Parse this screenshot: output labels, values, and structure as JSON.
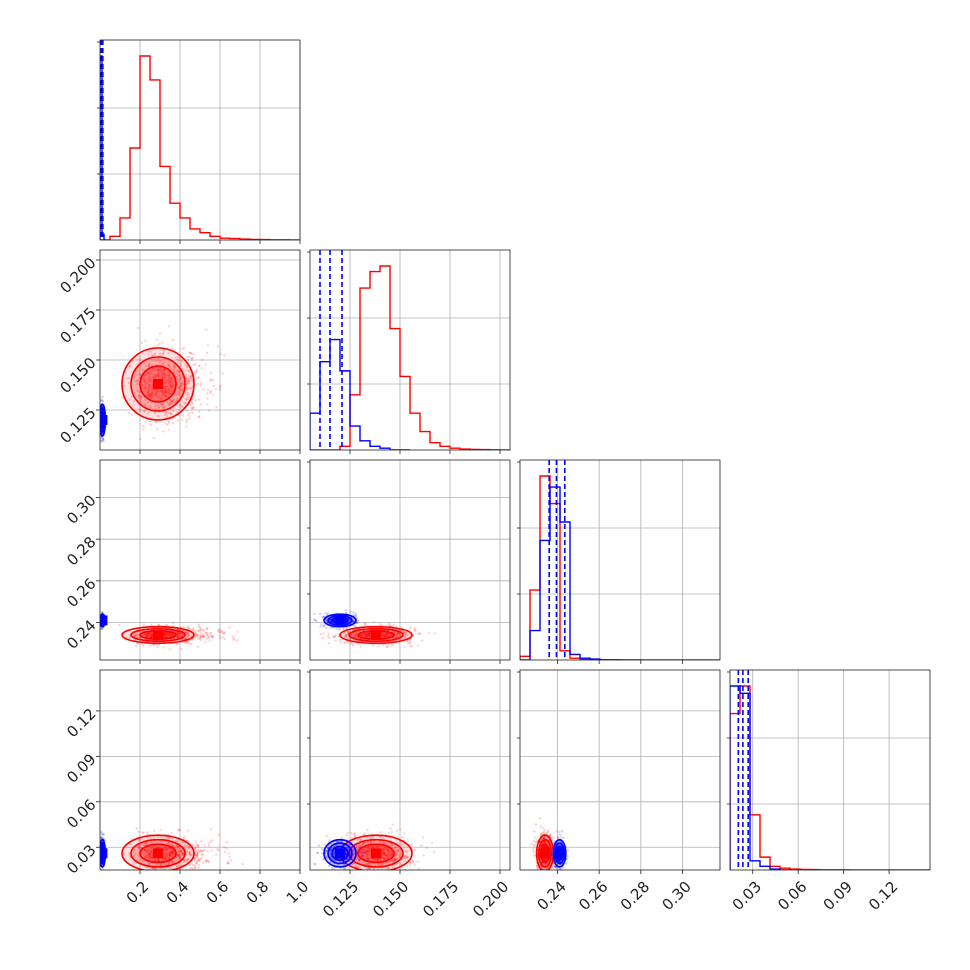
{
  "chart_data": {
    "type": "corner",
    "title": "",
    "grid": true,
    "params": [
      {
        "range": [
          0.0,
          1.0
        ],
        "ticks": [
          0.2,
          0.4,
          0.6,
          0.8,
          1.0
        ],
        "tick_labels": [
          "0.2",
          "0.4",
          "0.6",
          "0.8",
          "1.0"
        ]
      },
      {
        "range": [
          0.105,
          0.205
        ],
        "ticks": [
          0.125,
          0.15,
          0.175,
          0.2
        ],
        "tick_labels": [
          "0.125",
          "0.150",
          "0.175",
          "0.200"
        ]
      },
      {
        "range": [
          0.222,
          0.318
        ],
        "ticks": [
          0.24,
          0.26,
          0.28,
          0.3
        ],
        "tick_labels": [
          "0.24",
          "0.26",
          "0.28",
          "0.30"
        ]
      },
      {
        "range": [
          0.015,
          0.147
        ],
        "ticks": [
          0.03,
          0.06,
          0.09,
          0.12
        ],
        "tick_labels": [
          "0.03",
          "0.06",
          "0.09",
          "0.12"
        ]
      }
    ],
    "series": [
      {
        "color": "#ff0000",
        "centers": [
          0.29,
          0.138,
          0.234,
          0.026
        ],
        "spreads": [
          0.09,
          0.009,
          0.002,
          0.006
        ],
        "histograms": [
          {
            "edges": [
              0.0,
              0.05,
              0.1,
              0.15,
              0.2,
              0.25,
              0.3,
              0.35,
              0.4,
              0.45,
              0.5,
              0.55,
              0.6,
              0.65,
              0.7,
              0.75,
              0.8,
              0.85,
              0.9,
              0.95,
              1.0
            ],
            "counts": [
              0,
              0.02,
              0.12,
              0.5,
              1.0,
              0.87,
              0.4,
              0.2,
              0.12,
              0.06,
              0.04,
              0.02,
              0.01,
              0.008,
              0.005,
              0.003,
              0.002,
              0.001,
              0.001,
              0.0
            ]
          },
          {
            "edges": [
              0.105,
              0.11,
              0.115,
              0.12,
              0.125,
              0.13,
              0.135,
              0.14,
              0.145,
              0.15,
              0.155,
              0.16,
              0.165,
              0.17,
              0.175,
              0.18,
              0.185,
              0.19,
              0.195,
              0.2,
              0.205
            ],
            "counts": [
              0,
              0,
              0,
              0.02,
              0.3,
              0.88,
              0.97,
              1.0,
              0.66,
              0.4,
              0.2,
              0.1,
              0.04,
              0.02,
              0.01,
              0.005,
              0.003,
              0.002,
              0.001,
              0.0
            ]
          },
          {
            "edges": [
              0.222,
              0.2268,
              0.2316,
              0.2364,
              0.2412,
              0.246,
              0.2508,
              0.2556,
              0.2604,
              0.2652,
              0.27,
              0.2748,
              0.2796,
              0.2844,
              0.2892,
              0.294,
              0.2988,
              0.3036,
              0.3084,
              0.3132,
              0.318
            ],
            "counts": [
              0.02,
              0.38,
              1.0,
              0.85,
              0.05,
              0.01,
              0.003,
              0.002,
              0.001,
              0.001,
              0.001,
              0.001,
              0.0005,
              0.0005,
              0.0005,
              0.0005,
              0.0005,
              0.0005,
              0.0005,
              0.0
            ]
          },
          {
            "edges": [
              0.015,
              0.0216,
              0.0282,
              0.0348,
              0.0414,
              0.048,
              0.0546,
              0.0612,
              0.0678,
              0.0744,
              0.081,
              0.0876,
              0.0942,
              0.1008,
              0.1074,
              0.114,
              0.1206,
              0.1272,
              0.1338,
              0.1404,
              0.147
            ],
            "counts": [
              0.85,
              1.0,
              0.3,
              0.07,
              0.02,
              0.01,
              0.005,
              0.003,
              0.002,
              0.001,
              0.001,
              0.001,
              0.0005,
              0.0005,
              0.0005,
              0.0005,
              0.0005,
              0.0005,
              0.0005,
              0.0
            ]
          }
        ]
      },
      {
        "color": "#0000ff",
        "centers": [
          0.012,
          0.12,
          0.241,
          0.026
        ],
        "spreads": [
          0.004,
          0.004,
          0.0015,
          0.0045
        ],
        "histograms": [
          {
            "edges": [
              0.0,
              0.01,
              0.02,
              0.03
            ],
            "counts": [
              1.0,
              0.03,
              0.0
            ]
          },
          {
            "edges": [
              0.105,
              0.11,
              0.115,
              0.12,
              0.125,
              0.13,
              0.135,
              0.14,
              0.145,
              0.15,
              0.155
            ],
            "counts": [
              0.2,
              0.48,
              0.6,
              0.43,
              0.13,
              0.05,
              0.02,
              0.01,
              0.0,
              0.0
            ]
          },
          {
            "edges": [
              0.222,
              0.2268,
              0.2316,
              0.2364,
              0.2412,
              0.246,
              0.2508,
              0.2556,
              0.2604,
              0.2652,
              0.27
            ],
            "counts": [
              0.0,
              0.16,
              0.65,
              0.94,
              0.75,
              0.03,
              0.01,
              0.005,
              0.0,
              0.0
            ]
          },
          {
            "edges": [
              0.015,
              0.0216,
              0.0282,
              0.0348,
              0.0414,
              0.048,
              0.0546
            ],
            "counts": [
              1.0,
              0.96,
              0.05,
              0.02,
              0.005,
              0.0
            ]
          }
        ],
        "quantiles": [
          [
            0.005,
            0.01,
            0.014
          ],
          [
            0.11,
            0.115,
            0.121
          ],
          [
            0.236,
            0.2395,
            0.2435
          ],
          [
            0.0205,
            0.0235,
            0.027
          ]
        ]
      }
    ]
  }
}
